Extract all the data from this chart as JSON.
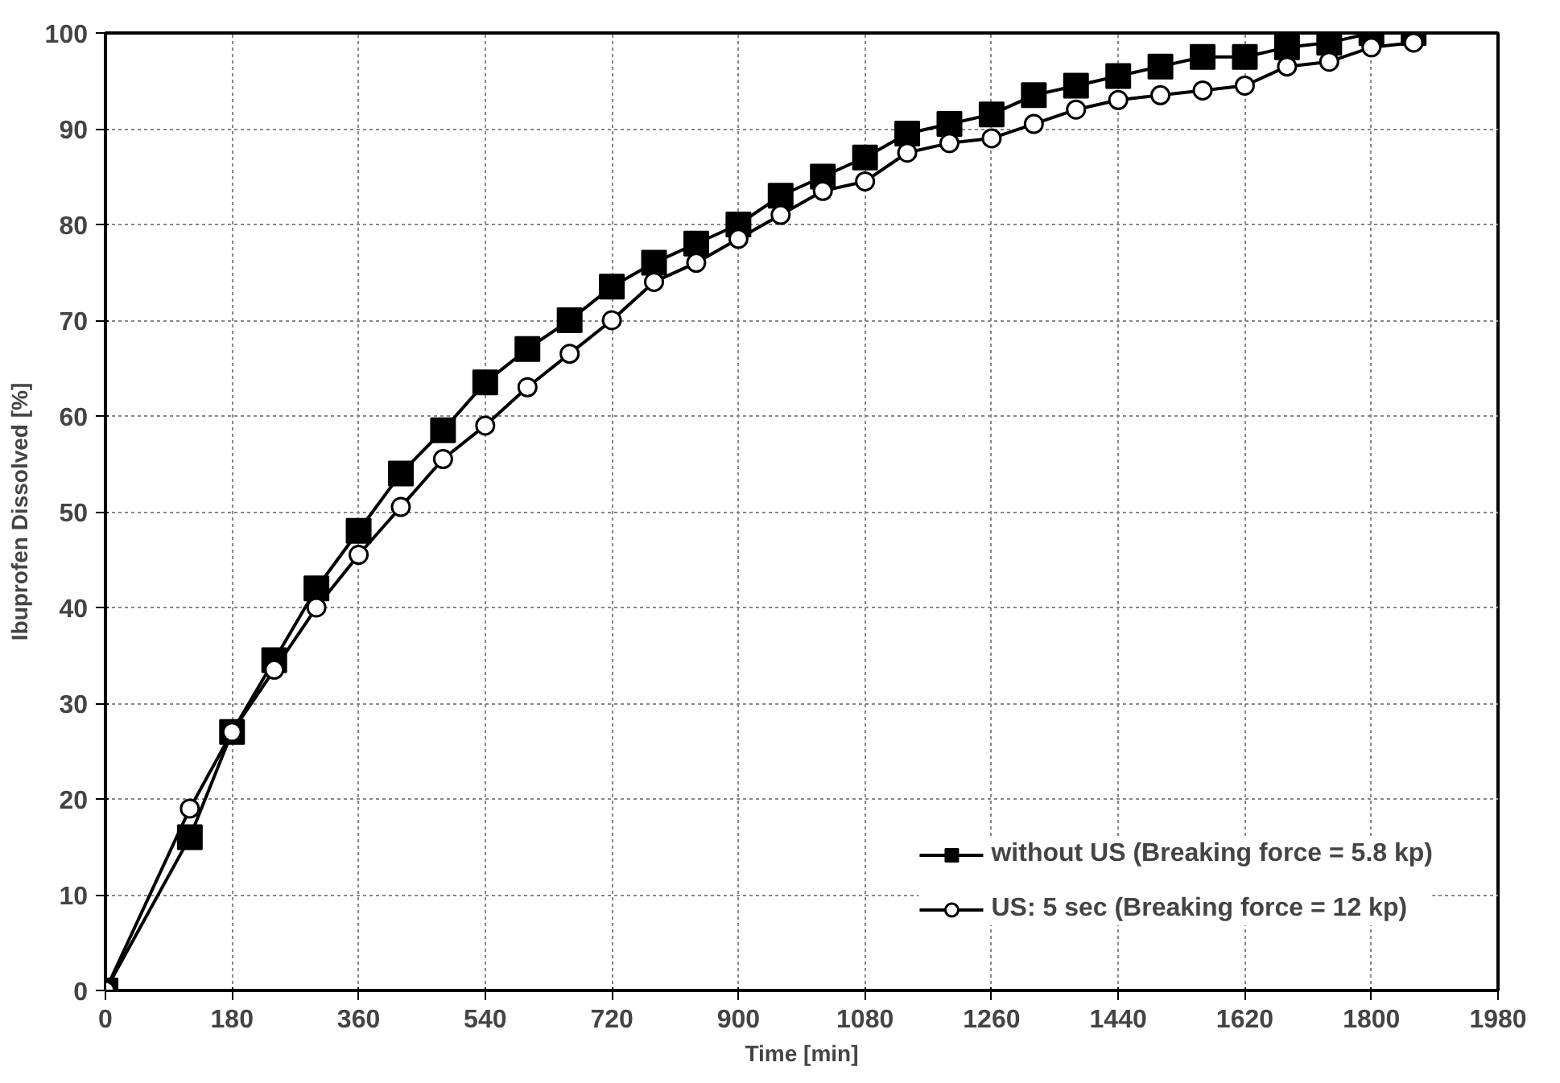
{
  "chart_data": {
    "type": "line",
    "xlabel": "Time [min]",
    "ylabel": "Ibuprofen Dissolved [%]",
    "x": [
      0,
      120,
      180,
      240,
      300,
      360,
      420,
      480,
      540,
      600,
      660,
      720,
      780,
      840,
      900,
      960,
      1020,
      1080,
      1140,
      1200,
      1260,
      1320,
      1380,
      1440,
      1500,
      1560,
      1620,
      1680,
      1740,
      1800,
      1860
    ],
    "series": [
      {
        "name": "without US (Breaking force = 5.8 kp)",
        "color": "#000000",
        "marker": "square",
        "values": [
          0,
          16,
          27,
          34.5,
          42,
          48,
          54,
          58.5,
          63.5,
          67,
          70,
          73.5,
          76,
          78,
          80,
          83,
          85,
          87,
          89.5,
          90.5,
          91.5,
          93.5,
          94.5,
          95.5,
          96.5,
          97.5,
          97.5,
          98.5,
          99,
          100,
          100
        ]
      },
      {
        "name": "US: 5 sec (Breaking force = 12 kp)",
        "color": "#000000",
        "marker": "circle",
        "values": [
          0,
          19,
          27,
          33.5,
          40,
          45.5,
          50.5,
          55.5,
          59,
          63,
          66.5,
          70,
          74,
          76,
          78.5,
          81,
          83.5,
          84.5,
          87.5,
          88.5,
          89,
          90.5,
          92,
          93,
          93.5,
          94,
          94.5,
          96.5,
          97,
          98.5,
          99
        ]
      }
    ],
    "xlim": [
      0,
      1980
    ],
    "ylim": [
      0,
      100
    ],
    "xticks": [
      0,
      180,
      360,
      540,
      720,
      900,
      1080,
      1260,
      1440,
      1620,
      1800,
      1980
    ],
    "yticks": [
      0,
      10,
      20,
      30,
      40,
      50,
      60,
      70,
      80,
      90,
      100
    ],
    "grid": true,
    "legend": "bottom right",
    "line_style": "solid"
  }
}
